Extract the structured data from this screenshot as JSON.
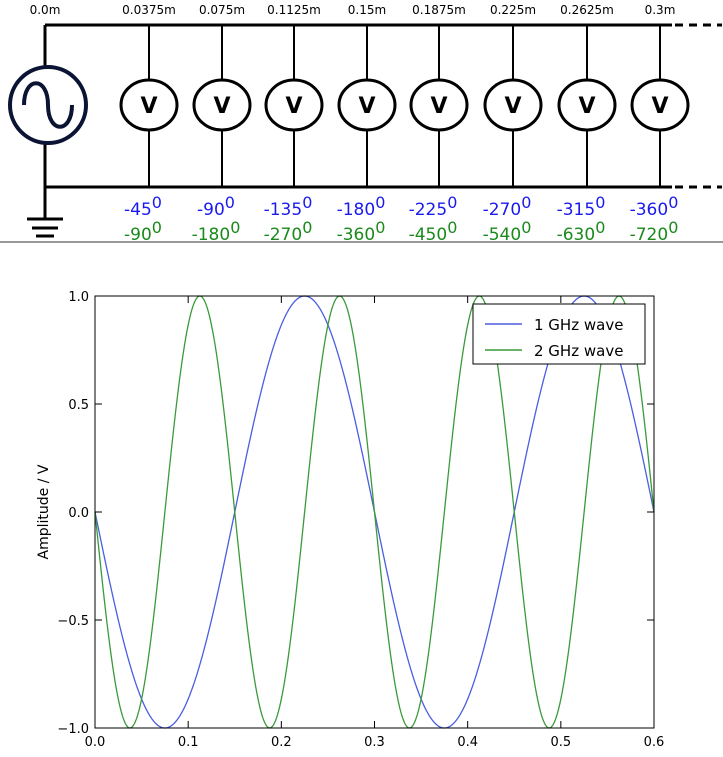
{
  "circuit": {
    "positions": [
      "0.0m",
      "0.0375m",
      "0.075m",
      "0.1125m",
      "0.15m",
      "0.1875m",
      "0.225m",
      "0.2625m",
      "0.3m"
    ],
    "voltmeter_label": "V",
    "phases_1ghz": [
      "-45",
      "-90",
      "-135",
      "-180",
      "-225",
      "-270",
      "-315",
      "-360"
    ],
    "phases_2ghz": [
      "-90",
      "-180",
      "-270",
      "-360",
      "-450",
      "-540",
      "-630",
      "-720"
    ],
    "degree_mark": "0",
    "colors": {
      "wire": "#000000",
      "phase_1ghz": "#1a1aee",
      "phase_2ghz": "#1a8a1a",
      "source": "#0b1433"
    }
  },
  "chart_data": {
    "type": "line",
    "title": "",
    "xlabel": "",
    "ylabel": "Amplitude / V",
    "xlim": [
      0.0,
      0.6
    ],
    "ylim": [
      -1.0,
      1.0
    ],
    "xticks": [
      "0.0",
      "0.1",
      "0.2",
      "0.3",
      "0.4",
      "0.5",
      "0.6"
    ],
    "yticks": [
      "1.0",
      "0.5",
      "0.0",
      "−0.5",
      "−1.0"
    ],
    "grid": false,
    "legend_position": "top-right",
    "series": [
      {
        "name": "1 GHz wave",
        "color": "#4a5ee0",
        "function": "-sin(2*pi*x/0.3)"
      },
      {
        "name": "2 GHz wave",
        "color": "#3a9a3a",
        "function": "-sin(2*pi*x/0.15)"
      }
    ]
  }
}
